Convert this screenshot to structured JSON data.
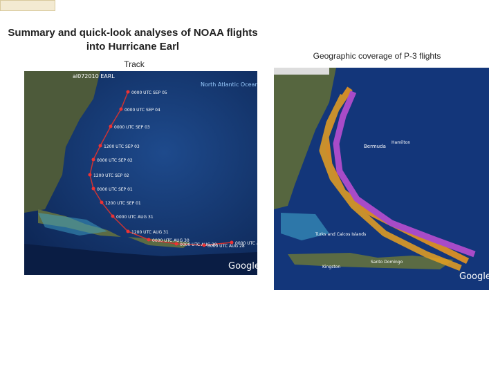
{
  "header": {
    "title_line1": "Summary and quick-look analyses of NOAA flights",
    "title_line2": "into Hurricane Earl"
  },
  "left_panel": {
    "caption": "Track",
    "map": {
      "heading": "al072010 EARL",
      "ocean_label": "North Atlantic Ocean",
      "logo": "Google",
      "track_labels": [
        "0000 UTC SEP 05",
        "0000 UTC SEP 04",
        "0000 UTC SEP 03",
        "1200 UTC SEP 03",
        "0000 UTC SEP 02",
        "1200 UTC SEP 02",
        "0000 UTC SEP 01",
        "1200 UTC SEP 01",
        "0000 UTC AUG 31",
        "1200 UTC AUG 31",
        "0000 UTC AUG 30",
        "0000 UTC AUG 29",
        "0000 UTC AUG 28",
        "0000 UTC AUG 26"
      ]
    }
  },
  "right_panel": {
    "caption": "Geographic coverage of P-3 flights",
    "map": {
      "labels": [
        "Bermuda",
        "Hamilton",
        "Turks and Caicos Islands",
        "Santo Domingo",
        "Kingston"
      ],
      "logo": "Google"
    }
  }
}
